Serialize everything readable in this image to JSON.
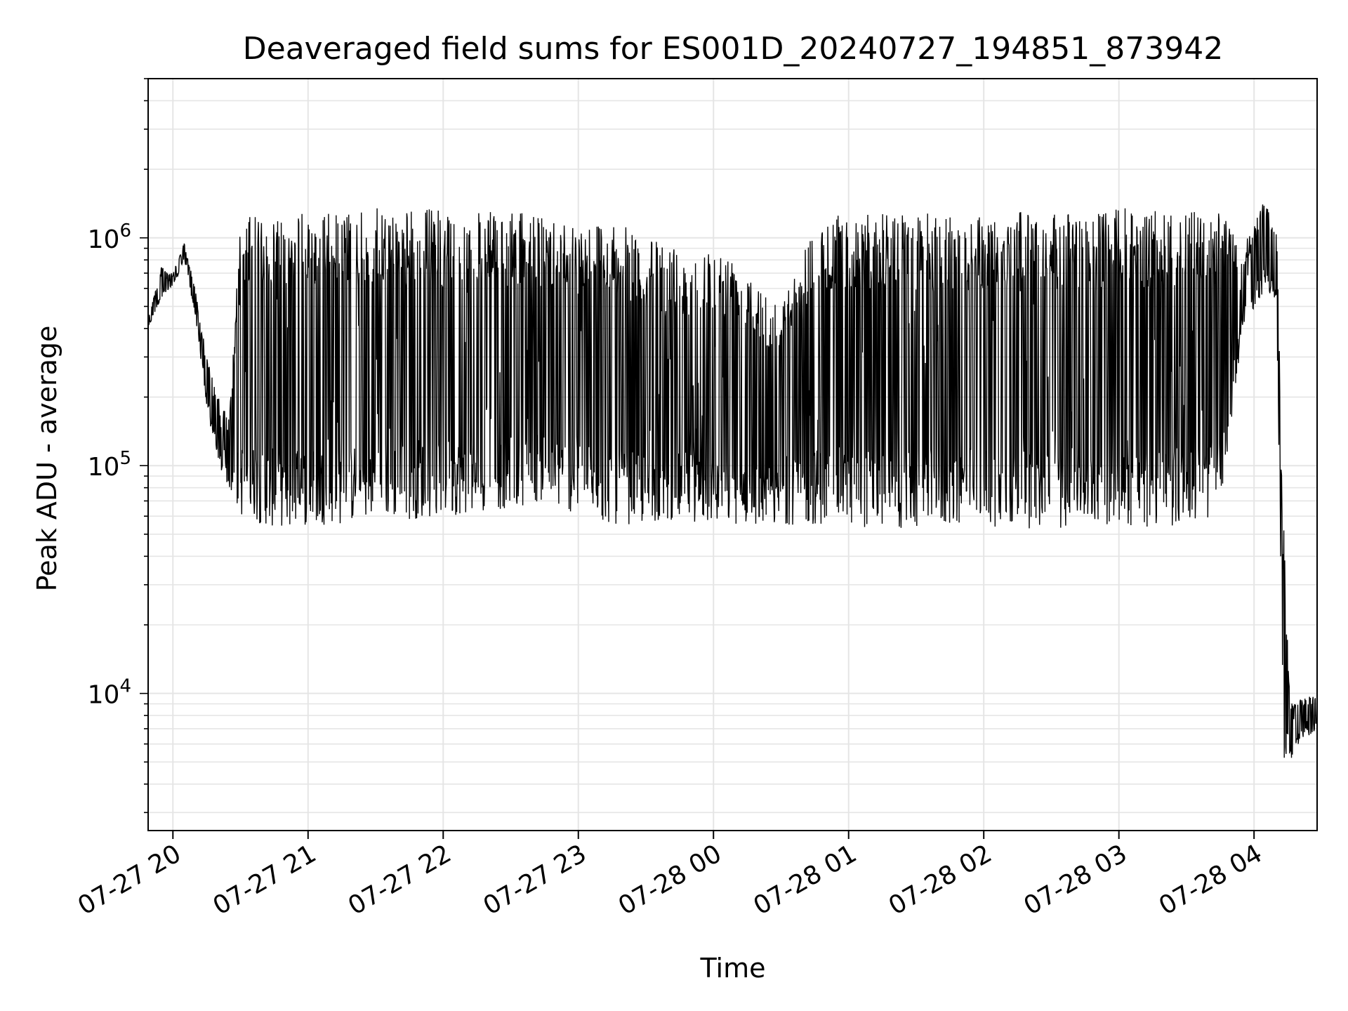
{
  "chart_data": {
    "type": "line",
    "title": "Deaveraged field sums for ES001D_20240727_194851_873942",
    "xlabel": "Time",
    "ylabel": "Peak ADU - average",
    "yscale": "log",
    "ylim": [
      2500,
      5000000
    ],
    "xlim": [
      "2024-07-27 19:49",
      "2024-07-28 04:28"
    ],
    "y_ticks": [
      {
        "value": 10000,
        "label": "10",
        "exp": "4"
      },
      {
        "value": 100000,
        "label": "10",
        "exp": "5"
      },
      {
        "value": 1000000,
        "label": "10",
        "exp": "6"
      }
    ],
    "x_ticks": [
      {
        "time": "2024-07-27 20:00",
        "label": "07-27 20"
      },
      {
        "time": "2024-07-27 21:00",
        "label": "07-27 21"
      },
      {
        "time": "2024-07-27 22:00",
        "label": "07-27 22"
      },
      {
        "time": "2024-07-27 23:00",
        "label": "07-27 23"
      },
      {
        "time": "2024-07-28 00:00",
        "label": "07-28 00"
      },
      {
        "time": "2024-07-28 01:00",
        "label": "07-28 01"
      },
      {
        "time": "2024-07-28 02:00",
        "label": "07-28 02"
      },
      {
        "time": "2024-07-28 03:00",
        "label": "07-28 03"
      },
      {
        "time": "2024-07-28 04:00",
        "label": "07-28 04"
      }
    ],
    "grid": true,
    "line_color": "#000000",
    "grid_color": "#e5e5e5",
    "series": [
      {
        "time": [
          "2024-07-27 19:49",
          "2024-07-27 19:55",
          "2024-07-27 20:00",
          "2024-07-27 20:05",
          "2024-07-27 20:10",
          "2024-07-27 20:15",
          "2024-07-27 20:20",
          "2024-07-27 20:25",
          "2024-07-27 20:30",
          "2024-07-27 20:40",
          "2024-07-27 20:50",
          "2024-07-27 21:00",
          "2024-07-27 21:15",
          "2024-07-27 21:30",
          "2024-07-27 21:45",
          "2024-07-27 22:00",
          "2024-07-27 22:15",
          "2024-07-27 22:30",
          "2024-07-27 22:45",
          "2024-07-27 23:00",
          "2024-07-27 23:15",
          "2024-07-27 23:30",
          "2024-07-27 23:45",
          "2024-07-28 00:00",
          "2024-07-28 00:15",
          "2024-07-28 00:30",
          "2024-07-28 00:45",
          "2024-07-28 01:00",
          "2024-07-28 01:15",
          "2024-07-28 01:30",
          "2024-07-28 01:45",
          "2024-07-28 02:00",
          "2024-07-28 02:15",
          "2024-07-28 02:30",
          "2024-07-28 02:45",
          "2024-07-28 03:00",
          "2024-07-28 03:15",
          "2024-07-28 03:30",
          "2024-07-28 03:45",
          "2024-07-28 03:55",
          "2024-07-28 04:05",
          "2024-07-28 04:10",
          "2024-07-28 04:13",
          "2024-07-28 04:16",
          "2024-07-28 04:20",
          "2024-07-28 04:28"
        ],
        "y_upper": [
          450000,
          750000,
          700000,
          950000,
          600000,
          300000,
          200000,
          160000,
          1200000,
          1300000,
          1300000,
          1300000,
          1300000,
          1350000,
          1350000,
          1350000,
          1300000,
          1300000,
          1250000,
          1200000,
          1200000,
          1000000,
          900000,
          900000,
          800000,
          500000,
          1200000,
          1300000,
          1300000,
          1300000,
          1250000,
          1300000,
          1300000,
          1300000,
          1300000,
          1350000,
          1350000,
          1300000,
          1300000,
          900000,
          1500000,
          1100000,
          60000,
          9000,
          9500,
          10000
        ],
        "y_lower": [
          400000,
          550000,
          600000,
          800000,
          450000,
          180000,
          100000,
          80000,
          60000,
          55000,
          52000,
          55000,
          55000,
          60000,
          58000,
          60000,
          62000,
          65000,
          70000,
          60000,
          55000,
          55000,
          58000,
          55000,
          55000,
          55000,
          55000,
          55000,
          52000,
          52000,
          55000,
          55000,
          52000,
          52000,
          55000,
          55000,
          52000,
          55000,
          60000,
          400000,
          600000,
          500000,
          5000,
          5000,
          6000,
          7000
        ]
      }
    ]
  }
}
